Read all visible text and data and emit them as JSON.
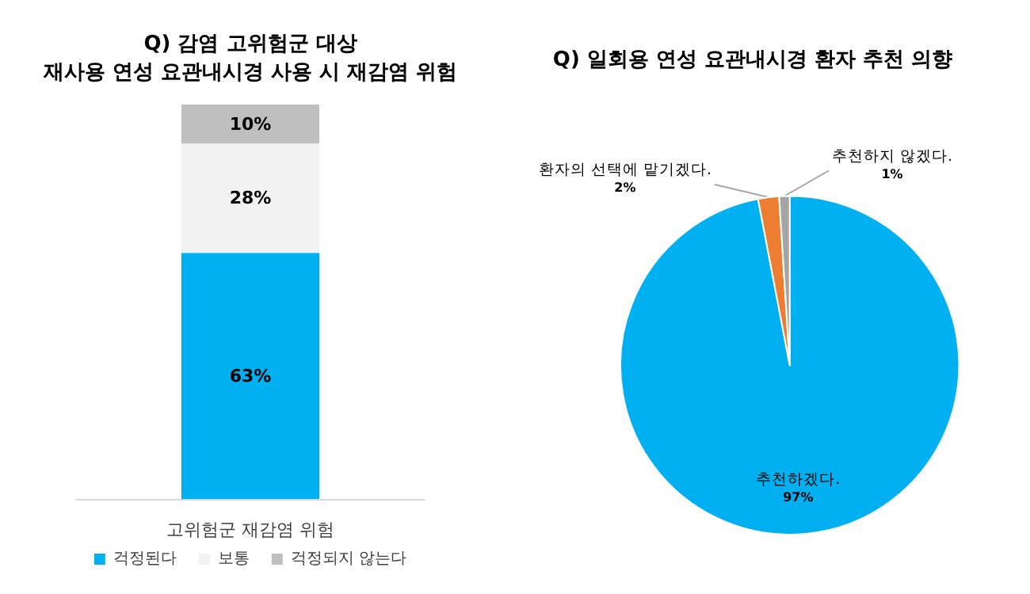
{
  "chart_data": [
    {
      "type": "bar",
      "title": "Q) 감염 고위험군 대상\n재사용 연성 요관내시경 사용 시 재감염 위험",
      "categories": [
        "고위험군 재감염 위험"
      ],
      "stacked": true,
      "legend": "bottom",
      "series": [
        {
          "name": "걱정된다",
          "color": "#00b0f0",
          "values": [
            63
          ],
          "value_labels": [
            "63%"
          ]
        },
        {
          "name": "보통",
          "color": "#f2f2f2",
          "values": [
            28
          ],
          "value_labels": [
            "28%"
          ]
        },
        {
          "name": "걱정되지 않는다",
          "color": "#bfbfbf",
          "values": [
            10
          ],
          "value_labels": [
            "10%"
          ]
        }
      ]
    },
    {
      "type": "pie",
      "title": "Q) 일회용 연성 요관내시경 환자 추천 의향",
      "categories": [
        "추천하겠다.",
        "환자의 선택에 맡기겠다.",
        "추천하지 않겠다."
      ],
      "values": [
        97,
        2,
        1
      ],
      "colors": [
        "#00b0f0",
        "#ed7d31",
        "#a5a5a5"
      ],
      "value_labels": [
        "97%",
        "2%",
        "1%"
      ]
    }
  ]
}
